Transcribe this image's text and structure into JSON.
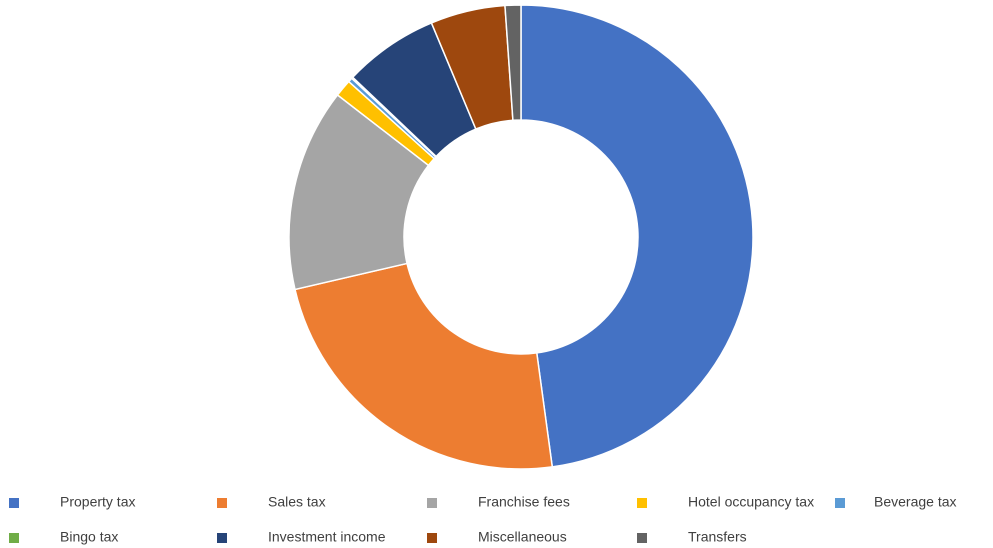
{
  "chart_data": {
    "type": "donut",
    "categories": [
      "Property tax",
      "Sales tax",
      "Franchise fees",
      "Hotel occupancy tax",
      "Beverage tax",
      "Bingo tax",
      "Investment income",
      "Miscellaneous",
      "Transfers"
    ],
    "values": [
      47.8,
      23.5,
      14.1,
      1.2,
      0.3,
      0.1,
      6.6,
      5.2,
      1.1
    ],
    "colors": [
      "#4472c4",
      "#ed7d31",
      "#a5a5a5",
      "#ffc000",
      "#5b9bd5",
      "#70ad47",
      "#264478",
      "#9e480e",
      "#636363"
    ],
    "legend": "bottom"
  }
}
